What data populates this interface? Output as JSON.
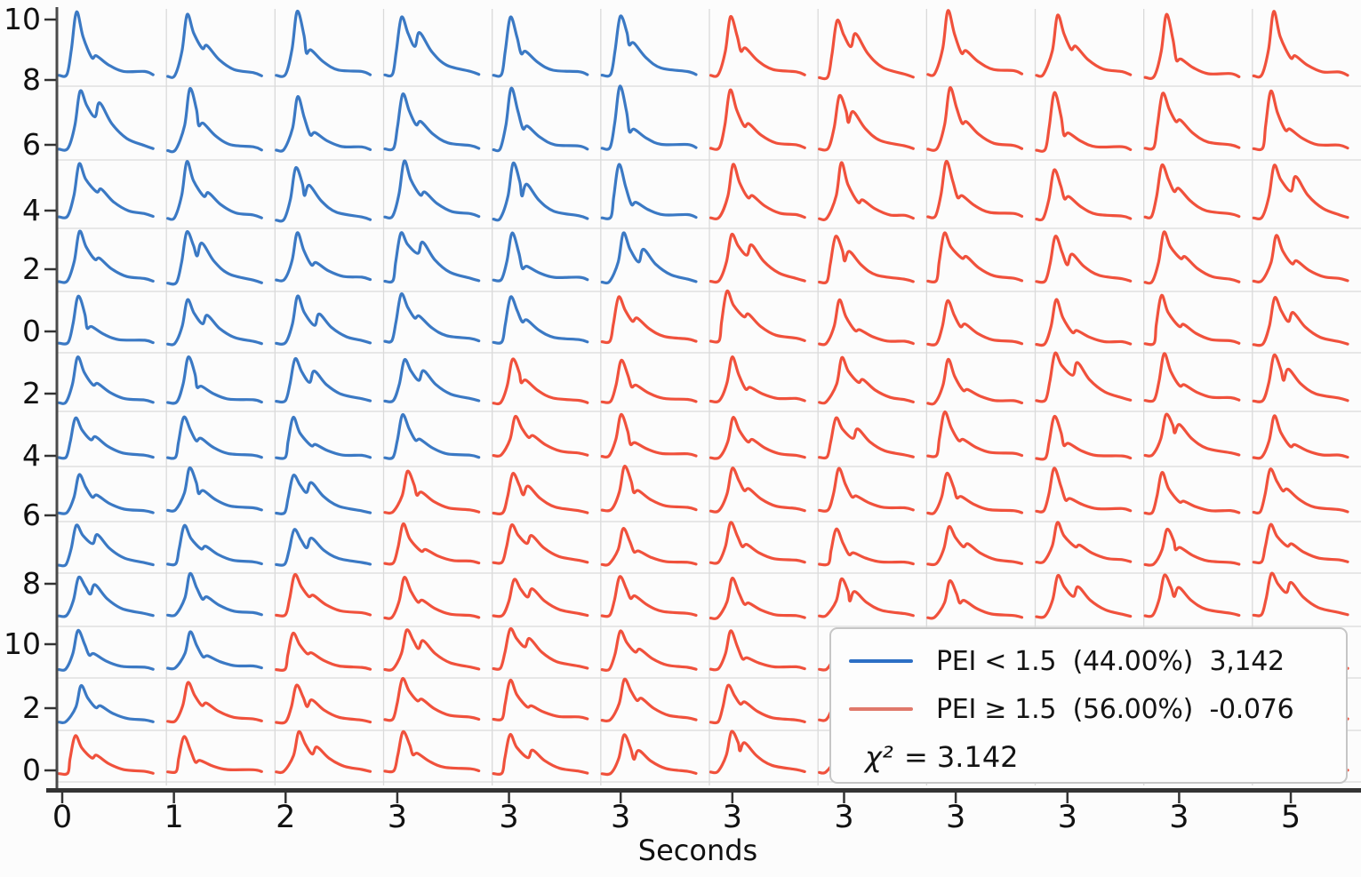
{
  "chart_data": {
    "type": "line",
    "subtype": "small-multiples-grid",
    "title": "",
    "xlabel": "Seconds",
    "grid": {
      "rows": 13,
      "cols": 12
    },
    "grid_on": true,
    "x_tick_labels": [
      "0",
      "1",
      "2",
      "3",
      "3",
      "3",
      "3",
      "3",
      "3",
      "3",
      "3",
      "5"
    ],
    "y_tick_labels": [
      "10",
      "8",
      "6",
      "4",
      "2",
      "0",
      "2",
      "4",
      "6",
      "8",
      "10",
      "2",
      "0"
    ],
    "cell_waveform": "PPG-style pulse: steep systolic rise peaking near 22% of cell width at ~90% of cell height, dicrotic notch then secondary bump around 35-50% of width at ~30-70% height, smooth decay to baseline ending near 86% of cell width",
    "color_rule": "cell is blue when its column index is less than blue_cols_per_row[row], otherwise red",
    "blue_cols_per_row": [
      6,
      6,
      6,
      6,
      5,
      4,
      4,
      3,
      3,
      2,
      2,
      1,
      0
    ],
    "series_colors": {
      "blue": "#3b79c4",
      "red": "#f0513c"
    },
    "legend": [
      {
        "name": "PEI < 1.5",
        "share": "44.00%",
        "value": "3,142",
        "color": "#2d6fc5"
      },
      {
        "name": "PEI ≥ 1.5",
        "share": "56.00%",
        "value": "-0.076",
        "color": "#e0796b"
      }
    ],
    "annotation": "χ² = 3.142",
    "legend_position": "lower right"
  },
  "legend": {
    "items": [
      {
        "label": "PEI < 1.5  (44.00%)  3,142",
        "swatch_color": "#2d6fc5"
      },
      {
        "label": "PEI ≥ 1.5  (56.00%)  -0.076",
        "swatch_color": "#e0796b"
      }
    ],
    "chi_symbol": "χ²",
    "chi_value": " = 3.142"
  },
  "colors": {
    "blue_waveform": "#3b79c4",
    "red_waveform": "#f0513c",
    "gridline": "#dadada",
    "axis": "#333333",
    "spine": "#4a4a4a",
    "text": "#141414",
    "background": "#fcfcfc",
    "cell_background": "#fdfdfd",
    "legend_border": "#c6c6c6"
  }
}
